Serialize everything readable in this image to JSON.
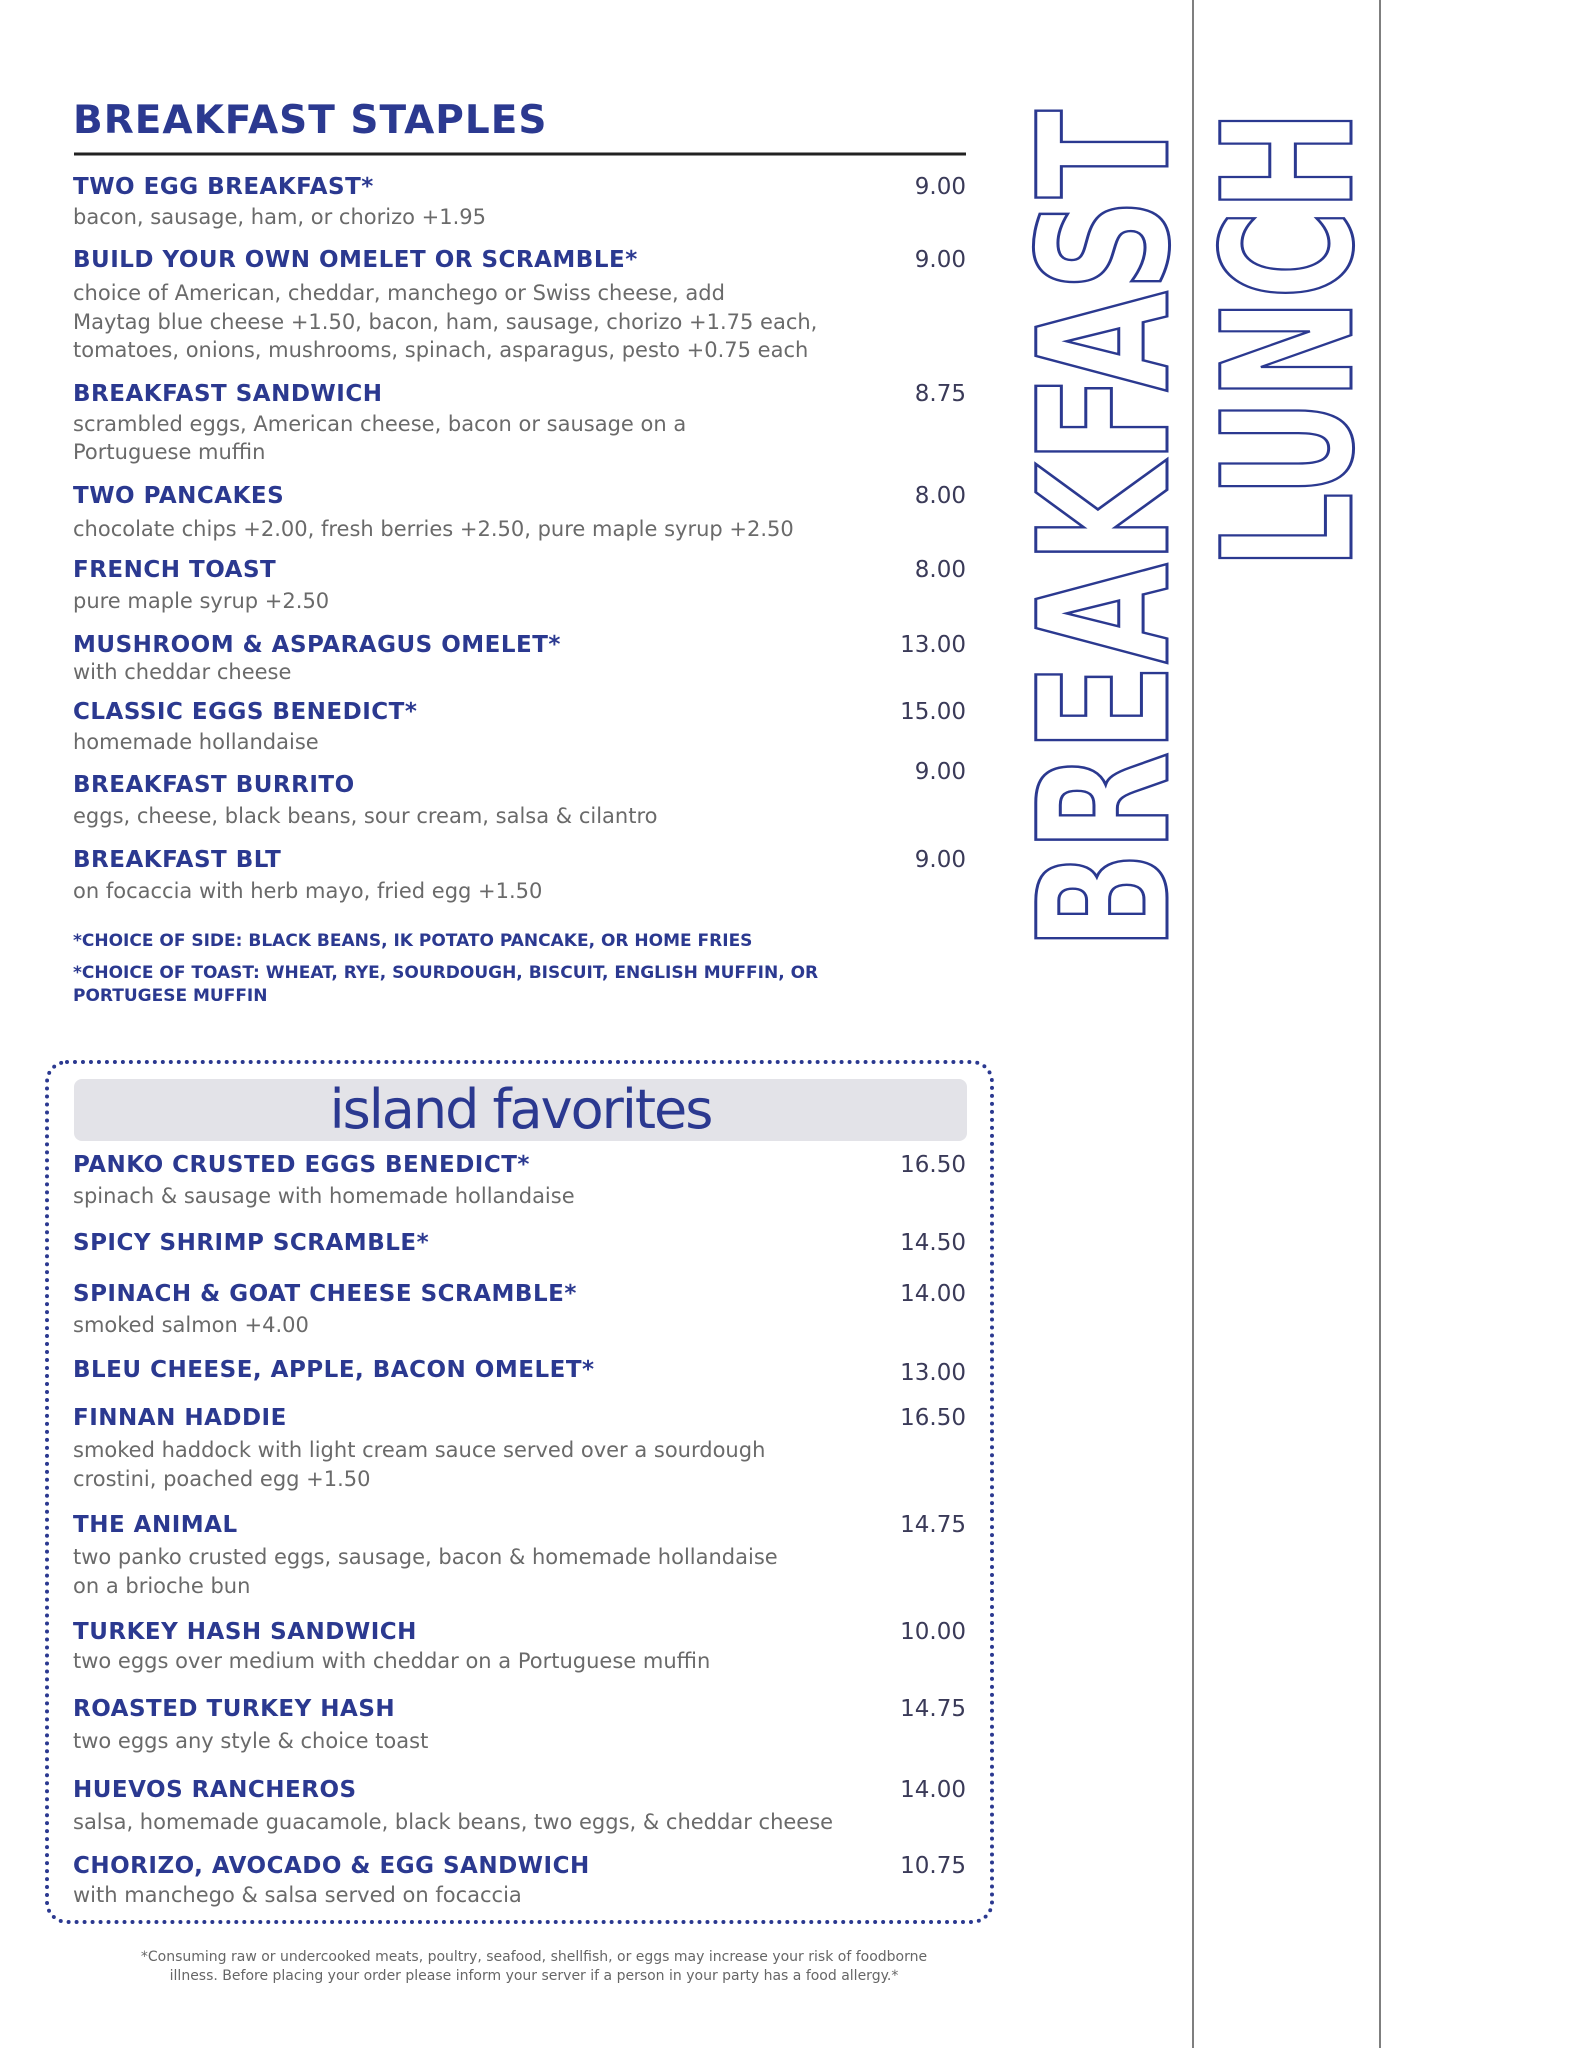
{
  "breakfast_staples": {
    "title": "BREAKFAST STAPLES",
    "items": [
      {
        "name": "TWO EGG BREAKFAST*",
        "price": "9.00",
        "description": [
          "bacon, sausage, ham, or chorizo +1.95"
        ]
      },
      {
        "name": "BUILD YOUR OWN OMELET OR SCRAMBLE*",
        "price": "9.00",
        "description": [
          "choice of American, cheddar, manchego or Swiss cheese, add",
          "Maytag blue cheese +1.50, bacon, ham, sausage, chorizo +1.75 each,",
          "tomatoes, onions, mushrooms, spinach, asparagus, pesto +0.75 each"
        ]
      },
      {
        "name": "BREAKFAST SANDWICH",
        "price": "8.75",
        "description": [
          "scrambled eggs, American cheese, bacon or sausage on a",
          "Portuguese muffin"
        ]
      },
      {
        "name": "TWO PANCAKES",
        "price": "8.00",
        "description": [
          "chocolate chips +2.00, fresh berries +2.50, pure maple syrup +2.50"
        ]
      },
      {
        "name": "FRENCH TOAST",
        "price": "8.00",
        "description": [
          "pure maple syrup +2.50"
        ]
      },
      {
        "name": "MUSHROOM & ASPARAGUS OMELET*",
        "price": "13.00",
        "description": [
          "with cheddar cheese"
        ]
      },
      {
        "name": "CLASSIC EGGS BENEDICT*",
        "price": "15.00",
        "description": [
          "homemade hollandaise"
        ]
      },
      {
        "name": "BREAKFAST BURRITO",
        "price": "9.00",
        "description": [
          "eggs, cheese, black beans, sour cream, salsa & cilantro"
        ]
      },
      {
        "name": "BREAKFAST BLT",
        "price": "9.00",
        "description": [
          "on focaccia with herb mayo, fried egg +1.50"
        ]
      }
    ],
    "notes": [
      "*CHOICE OF SIDE: BLACK BEANS, IK POTATO PANCAKE, OR HOME FRIES",
      "*CHOICE OF TOAST: WHEAT, RYE, SOURDOUGH, BISCUIT, ENGLISH MUFFIN, OR",
      "PORTUGESE MUFFIN"
    ]
  },
  "island_favorites": {
    "title": "island favorites",
    "items": [
      {
        "name": "PANKO CRUSTED EGGS BENEDICT*",
        "price": "16.50",
        "description": [
          "spinach & sausage with homemade hollandaise"
        ]
      },
      {
        "name": "SPICY SHRIMP SCRAMBLE*",
        "price": "14.50",
        "description": []
      },
      {
        "name": "SPINACH & GOAT CHEESE SCRAMBLE*",
        "price": "14.00",
        "description": [
          "smoked salmon +4.00"
        ]
      },
      {
        "name": "BLEU CHEESE, APPLE, BACON OMELET*",
        "price": "13.00",
        "description": []
      },
      {
        "name": "FINNAN HADDIE",
        "price": "16.50",
        "description": [
          "smoked haddock with light cream sauce served over a sourdough",
          "crostini, poached egg +1.50"
        ]
      },
      {
        "name": "THE ANIMAL",
        "price": "14.75",
        "description": [
          "two panko crusted eggs, sausage, bacon & homemade hollandaise",
          "on a brioche bun"
        ]
      },
      {
        "name": "TURKEY HASH SANDWICH",
        "price": "10.00",
        "description": [
          "two eggs over medium with cheddar on a Portuguese muffin"
        ]
      },
      {
        "name": "ROASTED TURKEY HASH",
        "price": "14.75",
        "description": [
          "two eggs any style & choice toast"
        ]
      },
      {
        "name": "HUEVOS RANCHEROS",
        "price": "14.00",
        "description": [
          "salsa, homemade guacamole, black beans, two eggs, & cheddar cheese"
        ]
      },
      {
        "name": "CHORIZO, AVOCADO & EGG SANDWICH",
        "price": "10.75",
        "description": [
          "with manchego & salsa served on focaccia"
        ]
      }
    ]
  },
  "footnote": [
    "*Consuming raw or undercooked meats, poultry, seafood, shellfish, or eggs may increase your risk of foodborne",
    "illness. Before placing your order please inform your server if a person in your party has a food allergy.*"
  ],
  "side_tabs": [
    "BREAKFAST",
    "LUNCH"
  ]
}
